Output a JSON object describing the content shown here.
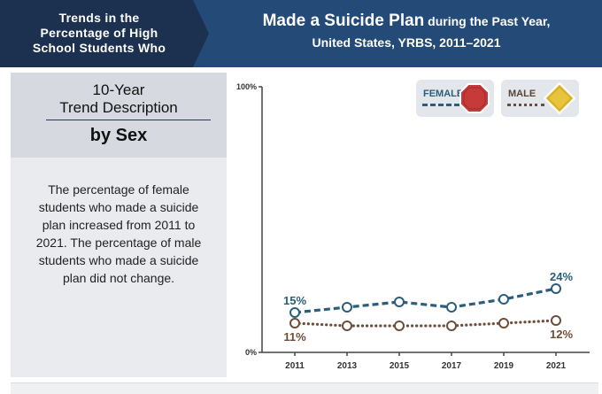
{
  "header": {
    "left_lines": [
      "Trends in the",
      "Percentage of High",
      "School Students Who"
    ],
    "title_bold": "Made a Suicide Plan",
    "title_rest": " during the Past Year,",
    "subtitle": "United States, YRBS, 2011–2021"
  },
  "panel": {
    "title_line1": "10-Year",
    "title_line2": "Trend Description",
    "title_line3": "by Sex",
    "description": "The percentage of female students who made a suicide plan increased from 2011 to 2021. The percentage of male students who made a suicide plan did not change."
  },
  "legend": {
    "female_label": "FEMALE",
    "male_label": "MALE"
  },
  "colors": {
    "female": "#2a5e7a",
    "male": "#6d4e3b",
    "header_dark": "#1c3150",
    "header": "#244a78"
  },
  "chart_data": {
    "type": "line",
    "x": [
      "2011",
      "2013",
      "2015",
      "2017",
      "2019",
      "2021"
    ],
    "ylim": [
      0,
      100
    ],
    "y_tick_labels": [
      "0%",
      "100%"
    ],
    "series": [
      {
        "name": "FEMALE",
        "values": [
          15,
          17,
          19,
          17,
          20,
          24
        ],
        "end_labels": [
          "15%",
          "24%"
        ],
        "style": "dashed",
        "marker": "open-circle"
      },
      {
        "name": "MALE",
        "values": [
          11,
          10,
          10,
          10,
          11,
          12
        ],
        "end_labels": [
          "11%",
          "12%"
        ],
        "style": "dotted",
        "marker": "open-circle"
      }
    ]
  }
}
